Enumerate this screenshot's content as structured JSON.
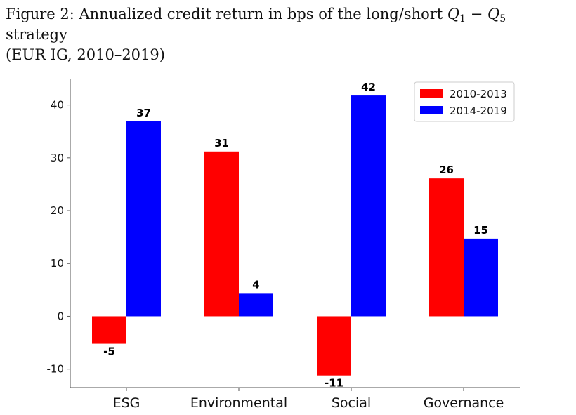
{
  "caption": {
    "line1_prefix": "Figure 2: Annualized credit return in bps of the long/short ",
    "q1": "Q",
    "q1_sub": "1",
    "minus": " − ",
    "q5": "Q",
    "q5_sub": "5",
    "line1_suffix": " strategy",
    "line2": "(EUR IG, 2010–2019)"
  },
  "chart_data": {
    "type": "bar",
    "categories": [
      "ESG",
      "Environmental",
      "Social",
      "Governance"
    ],
    "series": [
      {
        "name": "2010-2013",
        "color": "#ff0000",
        "values": [
          -5.2,
          31.2,
          -11.2,
          26.1
        ],
        "labels": [
          "-5",
          "31",
          "-11",
          "26"
        ]
      },
      {
        "name": "2014-2019",
        "color": "#0000ff",
        "values": [
          36.9,
          4.4,
          41.8,
          14.7
        ],
        "labels": [
          "37",
          "4",
          "42",
          "15"
        ]
      }
    ],
    "yticks": [
      -10,
      0,
      10,
      20,
      30,
      40
    ],
    "ylim": [
      -13.5,
      45
    ],
    "grid": false,
    "legend_position": "top-right"
  }
}
